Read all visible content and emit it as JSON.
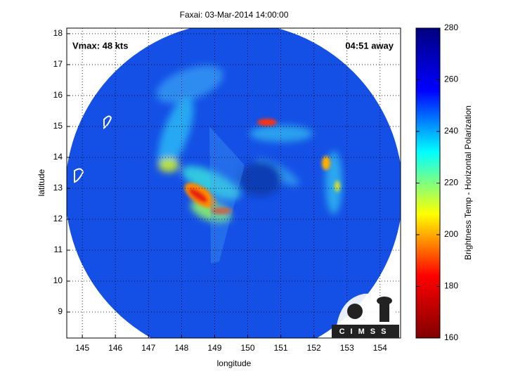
{
  "chart_data": {
    "type": "heatmap",
    "title": "Faxai: 03-Mar-2014 14:00:00",
    "xlabel": "longitude",
    "ylabel": "latitude",
    "annotations": [
      "Vmax: 48 kts",
      "04:51 away"
    ],
    "logo": "CIMSS",
    "xlim": [
      144.53,
      154.62
    ],
    "xticks": [
      145,
      146,
      147,
      148,
      149,
      150,
      151,
      152,
      153,
      154
    ],
    "ylim": [
      8.16,
      18.18
    ],
    "yticks": [
      9,
      10,
      11,
      12,
      13,
      14,
      15,
      16,
      17,
      18
    ],
    "grid": true,
    "colorbar": {
      "label": "Brightness Temp - Horizontal Polarization",
      "lim": [
        160,
        280
      ],
      "ticks": [
        160,
        180,
        200,
        220,
        240,
        260,
        280
      ],
      "colormap": [
        "#800000",
        "#ff0000",
        "#ffff00",
        "#00ffff",
        "#0000ff",
        "#000080"
      ]
    }
  }
}
